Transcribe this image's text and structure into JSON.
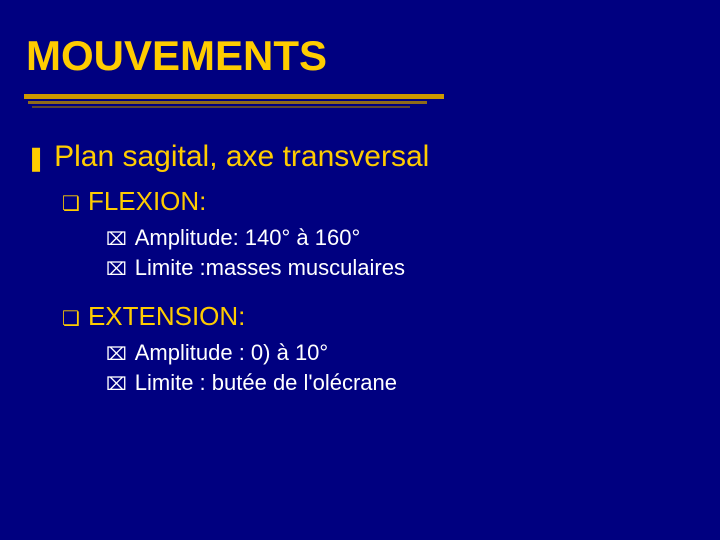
{
  "colors": {
    "background": "#000080",
    "title": "#ffcc00",
    "accent": "#ffcc00",
    "body": "#ffffff",
    "underline_main": "#cc9900",
    "underline_shadow1": "#b38600",
    "underline_shadow2": "#997300"
  },
  "typography": {
    "title_fontsize": 42,
    "level1_fontsize": 30,
    "level2_fontsize": 26,
    "level3_fontsize": 22,
    "font_family": "Arial"
  },
  "title": "MOUVEMENTS",
  "bullets": {
    "level1_glyph": "❚",
    "level2_glyph": "❏",
    "level3_glyph": "⌧"
  },
  "content": {
    "plan": "Plan sagital, axe transversal",
    "flexion": {
      "label": "FLEXION:",
      "amplitude": "Amplitude: 140° à 160°",
      "limite": "Limite :masses musculaires"
    },
    "extension": {
      "label": "EXTENSION:",
      "amplitude": "Amplitude : 0) à 10°",
      "limite": "Limite : butée de l'olécrane"
    }
  }
}
